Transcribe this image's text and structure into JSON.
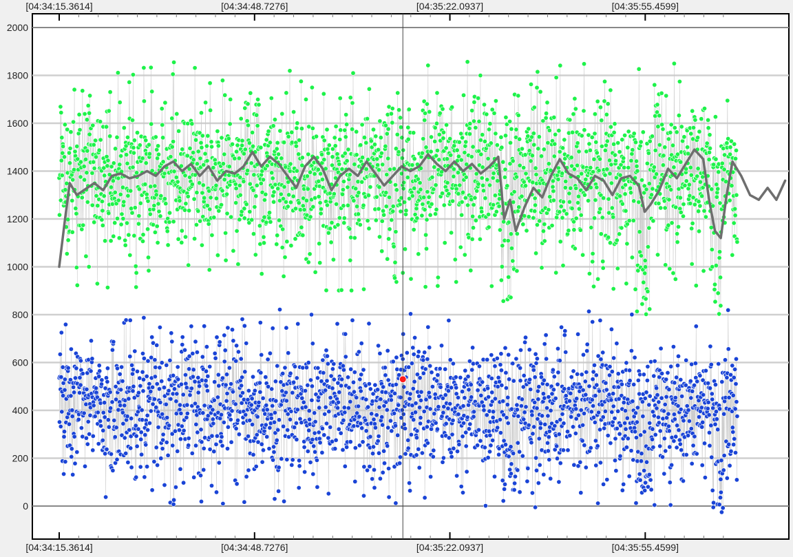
{
  "colors": {
    "background": "#f0f0f0",
    "plot_background": "#ffffff",
    "gridline": "#cfcfcf",
    "zero_line": "#888888",
    "upper_points": "#1ef24a",
    "lower_points": "#1a44d6",
    "trend_line": "#6e6e6e",
    "highlight_point": "#ff1a1a",
    "cursor_line": "#444444",
    "spike_line": "#c8c8c8"
  },
  "chart_data": {
    "type": "scatter",
    "title": "",
    "xlabel": "",
    "ylabel": "",
    "x_unit": "seconds",
    "xlim_seconds": [
      0,
      115.8
    ],
    "ylim": [
      -100,
      2000
    ],
    "grid": true,
    "legend": "none",
    "time_ticks": [
      {
        "t": 0,
        "label": "[04:34:15.3614]"
      },
      {
        "t": 33.3662,
        "label": "[04:34:48.7276]"
      },
      {
        "t": 66.7323,
        "label": "[04:35:22.0937]"
      },
      {
        "t": 100.0985,
        "label": "[04:35:55.4599]"
      }
    ],
    "y_ticks": [
      0,
      200,
      400,
      600,
      800,
      1000,
      1200,
      1400,
      1600,
      1800,
      2000
    ],
    "cursor_t": 58.7,
    "highlight_point": {
      "t": 58.7,
      "y": 530
    },
    "series": [
      {
        "kind": "points",
        "band": "upper",
        "approx_count": 2100,
        "center": 1380,
        "range": [
          800,
          1960
        ],
        "dips": [
          {
            "t": 76.5,
            "y_min": 800
          },
          {
            "t": 99.8,
            "y_min": 790
          },
          {
            "t": 112.1,
            "y_min": 800
          }
        ]
      },
      {
        "kind": "points",
        "band": "lower",
        "approx_count": 2100,
        "center": 410,
        "range": [
          -50,
          870
        ],
        "dips": [
          {
            "t": 76.8,
            "y_min": -10
          },
          {
            "t": 99.7,
            "y_min": 10
          },
          {
            "t": 112.5,
            "y_min": -50
          }
        ]
      },
      {
        "kind": "trend_line",
        "points": [
          [
            0,
            1000
          ],
          [
            1,
            1200
          ],
          [
            1.8,
            1350
          ],
          [
            3,
            1300
          ],
          [
            4.8,
            1330
          ],
          [
            6,
            1350
          ],
          [
            7.5,
            1320
          ],
          [
            9,
            1380
          ],
          [
            10.5,
            1390
          ],
          [
            12,
            1370
          ],
          [
            13.5,
            1380
          ],
          [
            15,
            1400
          ],
          [
            16.5,
            1380
          ],
          [
            18,
            1420
          ],
          [
            19.5,
            1440
          ],
          [
            21,
            1400
          ],
          [
            22.5,
            1430
          ],
          [
            24,
            1380
          ],
          [
            25.5,
            1420
          ],
          [
            27,
            1360
          ],
          [
            28.5,
            1400
          ],
          [
            30,
            1390
          ],
          [
            31.5,
            1420
          ],
          [
            33,
            1480
          ],
          [
            34.5,
            1420
          ],
          [
            36,
            1460
          ],
          [
            37.5,
            1430
          ],
          [
            39,
            1380
          ],
          [
            40.5,
            1330
          ],
          [
            42,
            1420
          ],
          [
            43.5,
            1460
          ],
          [
            45,
            1410
          ],
          [
            46.5,
            1320
          ],
          [
            48,
            1380
          ],
          [
            49.5,
            1410
          ],
          [
            51,
            1380
          ],
          [
            52.5,
            1440
          ],
          [
            54,
            1390
          ],
          [
            55.5,
            1340
          ],
          [
            57,
            1380
          ],
          [
            58.5,
            1420
          ],
          [
            60,
            1400
          ],
          [
            61.5,
            1420
          ],
          [
            63,
            1470
          ],
          [
            64.5,
            1430
          ],
          [
            66,
            1400
          ],
          [
            67.5,
            1440
          ],
          [
            69,
            1400
          ],
          [
            70.5,
            1430
          ],
          [
            72,
            1390
          ],
          [
            73.5,
            1420
          ],
          [
            75,
            1460
          ],
          [
            76,
            1200
          ],
          [
            77,
            1280
          ],
          [
            78,
            1150
          ],
          [
            79.5,
            1250
          ],
          [
            81,
            1330
          ],
          [
            82.5,
            1290
          ],
          [
            84,
            1380
          ],
          [
            85.5,
            1450
          ],
          [
            87,
            1390
          ],
          [
            88.5,
            1370
          ],
          [
            90,
            1320
          ],
          [
            91.5,
            1380
          ],
          [
            93,
            1360
          ],
          [
            94.5,
            1300
          ],
          [
            96,
            1370
          ],
          [
            97.5,
            1380
          ],
          [
            99,
            1340
          ],
          [
            100,
            1230
          ],
          [
            101,
            1260
          ],
          [
            102.5,
            1320
          ],
          [
            104,
            1410
          ],
          [
            105.5,
            1370
          ],
          [
            107,
            1430
          ],
          [
            108.5,
            1490
          ],
          [
            110,
            1450
          ],
          [
            111,
            1280
          ],
          [
            112,
            1150
          ],
          [
            113,
            1120
          ],
          [
            114,
            1300
          ],
          [
            115,
            1440
          ],
          [
            116.5,
            1380
          ],
          [
            118,
            1300
          ],
          [
            119.5,
            1280
          ],
          [
            121,
            1330
          ],
          [
            122.5,
            1280
          ],
          [
            124,
            1360
          ]
        ]
      }
    ]
  }
}
